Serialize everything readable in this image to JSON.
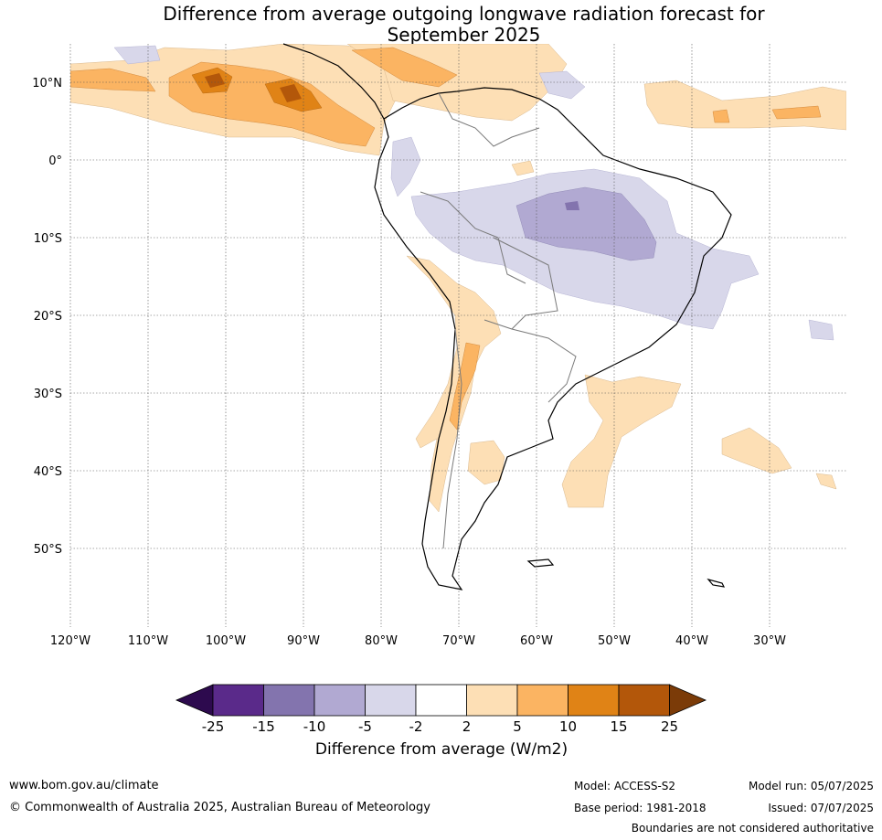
{
  "title_line1": "Difference from average outgoing longwave radiation forecast for",
  "title_line2": "September 2025",
  "lat_labels": [
    "10°N",
    "0°",
    "10°S",
    "20°S",
    "30°S",
    "40°S",
    "50°S"
  ],
  "lon_labels": [
    "120°W",
    "110°W",
    "100°W",
    "90°W",
    "80°W",
    "70°W",
    "60°W",
    "50°W",
    "40°W",
    "30°W"
  ],
  "colorbar": {
    "ticks": [
      "-25",
      "-15",
      "-10",
      "-5",
      "-2",
      "2",
      "5",
      "10",
      "15",
      "25"
    ],
    "label": "Difference from average (W/m2)",
    "colors": {
      "lt_neg25": "#2d0a4e",
      "neg25_neg15": "#5a2a8a",
      "neg15_neg10": "#8374ae",
      "neg10_neg5": "#b1a9d2",
      "neg5_neg2": "#d8d7ea",
      "neg2_2": "#ffffff",
      "pos2_5": "#fddfb5",
      "pos5_10": "#fbb462",
      "pos10_15": "#e08316",
      "pos15_25": "#b3570a",
      "gt_25": "#7b3b08"
    }
  },
  "footer": {
    "website": "www.bom.gov.au/climate",
    "copyright": "© Commonwealth of Australia 2025, Australian Bureau of Meteorology",
    "model": "Model: ACCESS-S2",
    "base_period": "Base period: 1981-2018",
    "model_run": "Model run: 05/07/2025",
    "issued": "Issued: 07/07/2025",
    "boundaries_note": "Boundaries are not considered authoritative"
  }
}
